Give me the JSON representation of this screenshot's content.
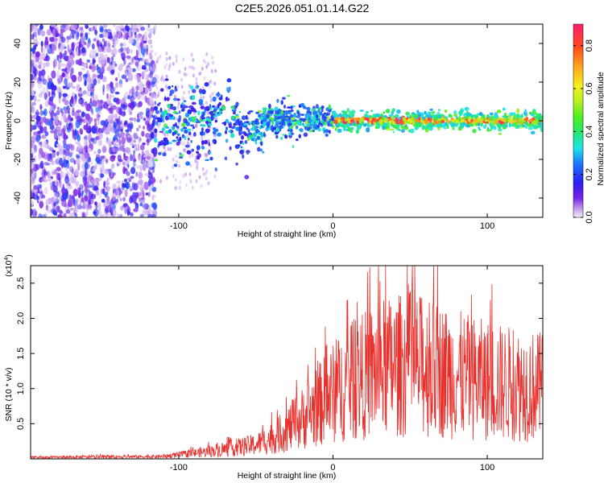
{
  "page": {
    "title": "C2E5.2026.051.01.14.G22"
  },
  "chart_data": [
    {
      "type": "heatmap",
      "xlabel": "Height of straight line (km)",
      "ylabel": "Frequency (Hz)",
      "xlim": [
        -196,
        136
      ],
      "ylim": [
        -50,
        50
      ],
      "x_ticks": [
        -100,
        0,
        100
      ],
      "y_ticks": [
        -40,
        -20,
        0,
        20,
        40
      ],
      "colorbar": {
        "label": "Normalized spectral amplitude",
        "range": [
          0.0,
          0.9
        ],
        "ticks": [
          0.0,
          0.2,
          0.4,
          0.6,
          0.8
        ]
      },
      "description_points": [
        {
          "x_range": [
            -196,
            -115
          ],
          "freq_spread": 50,
          "amplitude": 0.12
        },
        {
          "x_range": [
            -115,
            -55
          ],
          "freq_spread": 12,
          "amplitude": 0.25
        },
        {
          "x_range": [
            -55,
            0
          ],
          "freq_spread": 6,
          "amplitude": 0.3
        },
        {
          "x_range": [
            0,
            136
          ],
          "freq_spread": 3,
          "amplitude": 0.6
        }
      ]
    },
    {
      "type": "line",
      "xlabel": "Height of straight line (km)",
      "ylabel": "SNR (10 * v/v)",
      "y_scale_label": "(x10",
      "y_scale_exp": "4",
      "y_scale_close": ")",
      "xlim": [
        -196,
        136
      ],
      "ylim": [
        0,
        2.75
      ],
      "x_ticks": [
        -100,
        0,
        100
      ],
      "y_ticks": [
        0.5,
        1.0,
        1.5,
        2.0,
        2.5
      ],
      "y_tick_labels": [
        "0.5",
        "1.0",
        "1.5",
        "2.0",
        "2.5"
      ],
      "envelope": [
        {
          "x": -196,
          "y": 0.03
        },
        {
          "x": -110,
          "y": 0.05
        },
        {
          "x": -90,
          "y": 0.12
        },
        {
          "x": -70,
          "y": 0.2
        },
        {
          "x": -50,
          "y": 0.3
        },
        {
          "x": -35,
          "y": 0.5
        },
        {
          "x": -20,
          "y": 0.85
        },
        {
          "x": -5,
          "y": 1.25
        },
        {
          "x": 10,
          "y": 1.6
        },
        {
          "x": 30,
          "y": 1.9
        },
        {
          "x": 50,
          "y": 2.0
        },
        {
          "x": 70,
          "y": 1.85
        },
        {
          "x": 90,
          "y": 1.7
        },
        {
          "x": 110,
          "y": 1.6
        },
        {
          "x": 136,
          "y": 1.5
        }
      ],
      "series_color": "#e8302c"
    }
  ]
}
